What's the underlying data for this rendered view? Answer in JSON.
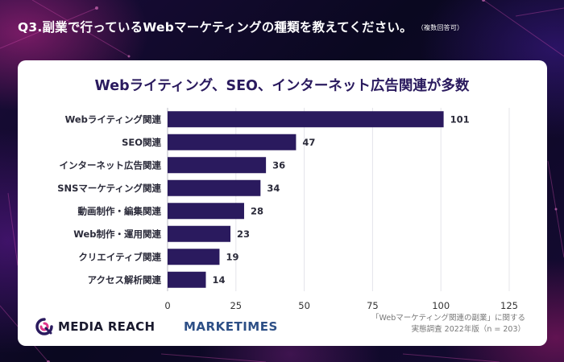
{
  "question": {
    "text": "Q3.副業で行っているWebマーケティングの種類を教えてください。",
    "note": "（複数回答可）"
  },
  "chart_data": {
    "type": "bar",
    "orientation": "horizontal",
    "title": "Webライティング、SEO、インターネット広告関連が多数",
    "categories": [
      "Webライティング関連",
      "SEO関連",
      "インターネット広告関連",
      "SNSマーケティング関連",
      "動画制作・編集関連",
      "Web制作・運用関連",
      "クリエイティブ関連",
      "アクセス解析関連"
    ],
    "values": [
      101,
      47,
      36,
      34,
      28,
      23,
      19,
      14
    ],
    "xlim": [
      0,
      125
    ],
    "xticks": [
      0,
      25,
      50,
      75,
      100,
      125
    ],
    "grid": true,
    "bar_color": "#2a1a5e"
  },
  "logos": {
    "media_reach": "MEDIA REACH",
    "marketimes": "MARKETIMES"
  },
  "source": {
    "line1": "「Webマーケティング関連の副業」に関する",
    "line2": "実態調査 2022年版（n = 203）"
  }
}
